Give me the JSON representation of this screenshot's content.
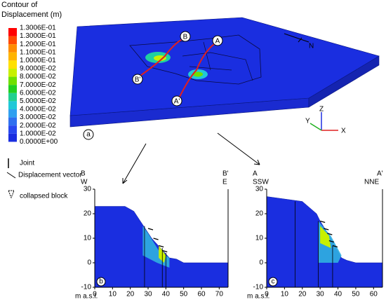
{
  "figure": {
    "legend": {
      "title": "Contour of Displacement (m)",
      "labels": [
        "1.3006E-01",
        "1.3000E-01",
        "1.2000E-01",
        "1.1000E-01",
        "1.0000E-01",
        "9.0000E-02",
        "8.0000E-02",
        "7.0000E-02",
        "6.0000E-02",
        "5.0000E-02",
        "4.0000E-02",
        "3.0000E-02",
        "2.0000E-02",
        "1.0000E-02",
        "0.0000E+00"
      ],
      "colors": [
        "#ff0000",
        "#ff4a00",
        "#ff8c00",
        "#ffb400",
        "#ffe000",
        "#c8f000",
        "#6ee000",
        "#20d020",
        "#20d090",
        "#20c8d8",
        "#30a0f0",
        "#3070f0",
        "#2848f0",
        "#1a2ee0"
      ]
    },
    "model": {
      "panel": "a",
      "points": [
        "A",
        "A'",
        "B",
        "B'"
      ],
      "axes": [
        "Z",
        "Y",
        "X"
      ],
      "north": "N"
    },
    "key": {
      "joint": "Joint",
      "vector": "Displacement vector",
      "block": "collapsed block"
    },
    "section_b": {
      "panel": "b",
      "left": "B",
      "right": "B'",
      "left_dir": "W",
      "right_dir": "E",
      "xlim": [
        0,
        75
      ],
      "ylim": [
        -10,
        30
      ],
      "xticks": [
        0,
        10,
        20,
        30,
        40,
        50,
        60,
        70
      ],
      "yticks": [
        30,
        20,
        10,
        0,
        -10
      ],
      "unit": "m a.s.l."
    },
    "section_c": {
      "panel": "c",
      "left": "A",
      "right": "A'",
      "left_dir": "SSW",
      "right_dir": "NNE",
      "xlim": [
        0,
        65
      ],
      "ylim": [
        -10,
        30
      ],
      "xticks": [
        0,
        10,
        20,
        30,
        40,
        50,
        60
      ],
      "yticks": [
        30,
        20,
        10,
        0,
        -10
      ],
      "unit": "m a.s.l."
    }
  }
}
